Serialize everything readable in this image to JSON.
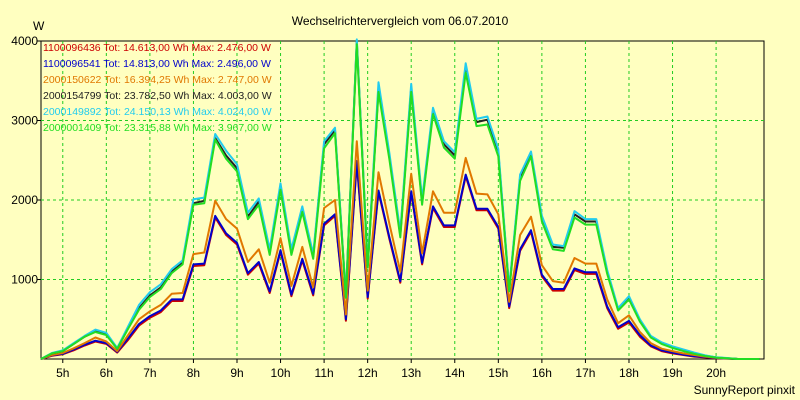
{
  "chart_data": {
    "type": "line",
    "title": "Wechselrichtervergleich vom 06.07.2010",
    "ylabel": "W",
    "footer": "SunnyReport pinxit",
    "ylim": [
      0,
      4000
    ],
    "yticks": [
      "1000",
      "2000",
      "3000",
      "4000"
    ],
    "ytick_values": [
      1000,
      2000,
      3000,
      4000
    ],
    "xlim": [
      4.5,
      21.1
    ],
    "xtick_labels": [
      "5h",
      "6h",
      "7h",
      "8h",
      "9h",
      "10h",
      "11h",
      "12h",
      "13h",
      "14h",
      "15h",
      "16h",
      "17h",
      "18h",
      "19h",
      "20h"
    ],
    "xtick_values": [
      5,
      6,
      7,
      8,
      9,
      10,
      11,
      12,
      13,
      14,
      15,
      16,
      17,
      18,
      19,
      20
    ],
    "grid": true,
    "legend_position": "top-left",
    "x": [
      4.5,
      4.75,
      5.0,
      5.25,
      5.5,
      5.75,
      6.0,
      6.25,
      6.5,
      6.75,
      7.0,
      7.25,
      7.5,
      7.75,
      8.0,
      8.25,
      8.5,
      8.75,
      9.0,
      9.25,
      9.5,
      9.75,
      10.0,
      10.25,
      10.5,
      10.75,
      11.0,
      11.25,
      11.5,
      11.75,
      12.0,
      12.25,
      12.5,
      12.75,
      13.0,
      13.25,
      13.5,
      13.75,
      14.0,
      14.25,
      14.5,
      14.75,
      15.0,
      15.25,
      15.5,
      15.75,
      16.0,
      16.25,
      16.5,
      16.75,
      17.0,
      17.25,
      17.5,
      17.75,
      18.0,
      18.25,
      18.5,
      18.75,
      19.0,
      19.25,
      19.5,
      19.75,
      20.0,
      20.25,
      20.5,
      20.75,
      21.0
    ],
    "series": [
      {
        "name": "1100096436 Tot: 14.613,00 Wh Max: 2.476,00 W",
        "color": "#cc0000",
        "values": [
          0,
          40,
          60,
          110,
          170,
          220,
          190,
          80,
          240,
          420,
          520,
          590,
          730,
          730,
          1170,
          1180,
          1780,
          1560,
          1440,
          1060,
          1200,
          830,
          1350,
          790,
          1240,
          800,
          1680,
          1800,
          480,
          2460,
          760,
          2100,
          1510,
          960,
          2090,
          1190,
          1900,
          1660,
          1660,
          2300,
          1870,
          1870,
          1640,
          640,
          1360,
          1600,
          1040,
          860,
          860,
          1120,
          1070,
          1070,
          640,
          380,
          460,
          280,
          160,
          100,
          70,
          50,
          30,
          20,
          10,
          5,
          0,
          0,
          0
        ]
      },
      {
        "name": "1100096541 Tot: 14.813,00 Wh Max: 2.496,00 W",
        "color": "#0000cc",
        "values": [
          0,
          45,
          65,
          120,
          180,
          230,
          200,
          90,
          260,
          440,
          540,
          610,
          750,
          750,
          1190,
          1200,
          1800,
          1580,
          1460,
          1080,
          1220,
          850,
          1370,
          810,
          1260,
          820,
          1700,
          1820,
          500,
          2490,
          780,
          2120,
          1530,
          980,
          2110,
          1210,
          1920,
          1680,
          1680,
          2320,
          1890,
          1890,
          1660,
          660,
          1380,
          1620,
          1060,
          880,
          880,
          1140,
          1090,
          1090,
          660,
          400,
          480,
          300,
          170,
          110,
          80,
          55,
          35,
          25,
          12,
          6,
          0,
          0,
          0
        ]
      },
      {
        "name": "2000150622 Tot: 16.394,25 Wh Max: 2.747,00 W",
        "color": "#e07800",
        "values": [
          0,
          50,
          75,
          135,
          200,
          270,
          220,
          100,
          300,
          500,
          600,
          680,
          820,
          830,
          1320,
          1340,
          1990,
          1760,
          1640,
          1220,
          1380,
          960,
          1520,
          920,
          1410,
          900,
          1900,
          2000,
          560,
          2740,
          860,
          2350,
          1700,
          1100,
          2330,
          1330,
          2110,
          1840,
          1840,
          2530,
          2080,
          2070,
          1820,
          720,
          1560,
          1790,
          1180,
          980,
          960,
          1270,
          1200,
          1200,
          750,
          450,
          550,
          340,
          200,
          130,
          100,
          70,
          50,
          30,
          15,
          8,
          0,
          0,
          0
        ]
      },
      {
        "name": "2000154799 Tot: 23.782,50 Wh Max: 4.003,00 W",
        "color": "#222222",
        "values": [
          0,
          70,
          100,
          190,
          280,
          350,
          310,
          130,
          390,
          640,
          800,
          900,
          1100,
          1210,
          1960,
          1990,
          2780,
          2560,
          2400,
          1790,
          1980,
          1340,
          2170,
          1340,
          1890,
          1290,
          2700,
          2880,
          780,
          4000,
          1170,
          3400,
          2550,
          1560,
          3410,
          1970,
          3120,
          2700,
          2560,
          3650,
          2980,
          3010,
          2600,
          870,
          2280,
          2580,
          1760,
          1410,
          1400,
          1820,
          1730,
          1730,
          1100,
          620,
          770,
          480,
          280,
          200,
          150,
          110,
          70,
          40,
          20,
          10,
          0,
          0,
          0
        ]
      },
      {
        "name": "2000149892 Tot: 24.150,13 Wh Max: 4.024,00 W",
        "color": "#22ccee",
        "values": [
          0,
          75,
          110,
          200,
          290,
          370,
          330,
          140,
          410,
          680,
          840,
          940,
          1130,
          1240,
          2010,
          2030,
          2830,
          2620,
          2450,
          1840,
          2020,
          1380,
          2210,
          1380,
          1920,
          1320,
          2740,
          2910,
          800,
          4020,
          1190,
          3480,
          2590,
          1600,
          3460,
          2010,
          3160,
          2740,
          2600,
          3720,
          3020,
          3050,
          2640,
          890,
          2320,
          2610,
          1800,
          1440,
          1420,
          1860,
          1760,
          1760,
          1120,
          640,
          790,
          500,
          290,
          210,
          160,
          120,
          80,
          45,
          22,
          12,
          0,
          0,
          0
        ]
      },
      {
        "name": "2000001409 Tot: 23.315,88 Wh Max: 3.967,00 W",
        "color": "#22dd22",
        "values": [
          0,
          70,
          100,
          190,
          280,
          340,
          300,
          130,
          380,
          620,
          780,
          880,
          1080,
          1190,
          1940,
          1960,
          2760,
          2520,
          2360,
          1760,
          1940,
          1310,
          2130,
          1310,
          1850,
          1260,
          2650,
          2840,
          770,
          3960,
          1150,
          3360,
          2510,
          1530,
          3360,
          1940,
          3080,
          2660,
          2520,
          3600,
          2930,
          2950,
          2550,
          850,
          2240,
          2550,
          1730,
          1380,
          1360,
          1780,
          1690,
          1690,
          1070,
          610,
          750,
          470,
          270,
          190,
          140,
          100,
          65,
          38,
          18,
          9,
          0,
          0,
          0
        ]
      }
    ]
  }
}
